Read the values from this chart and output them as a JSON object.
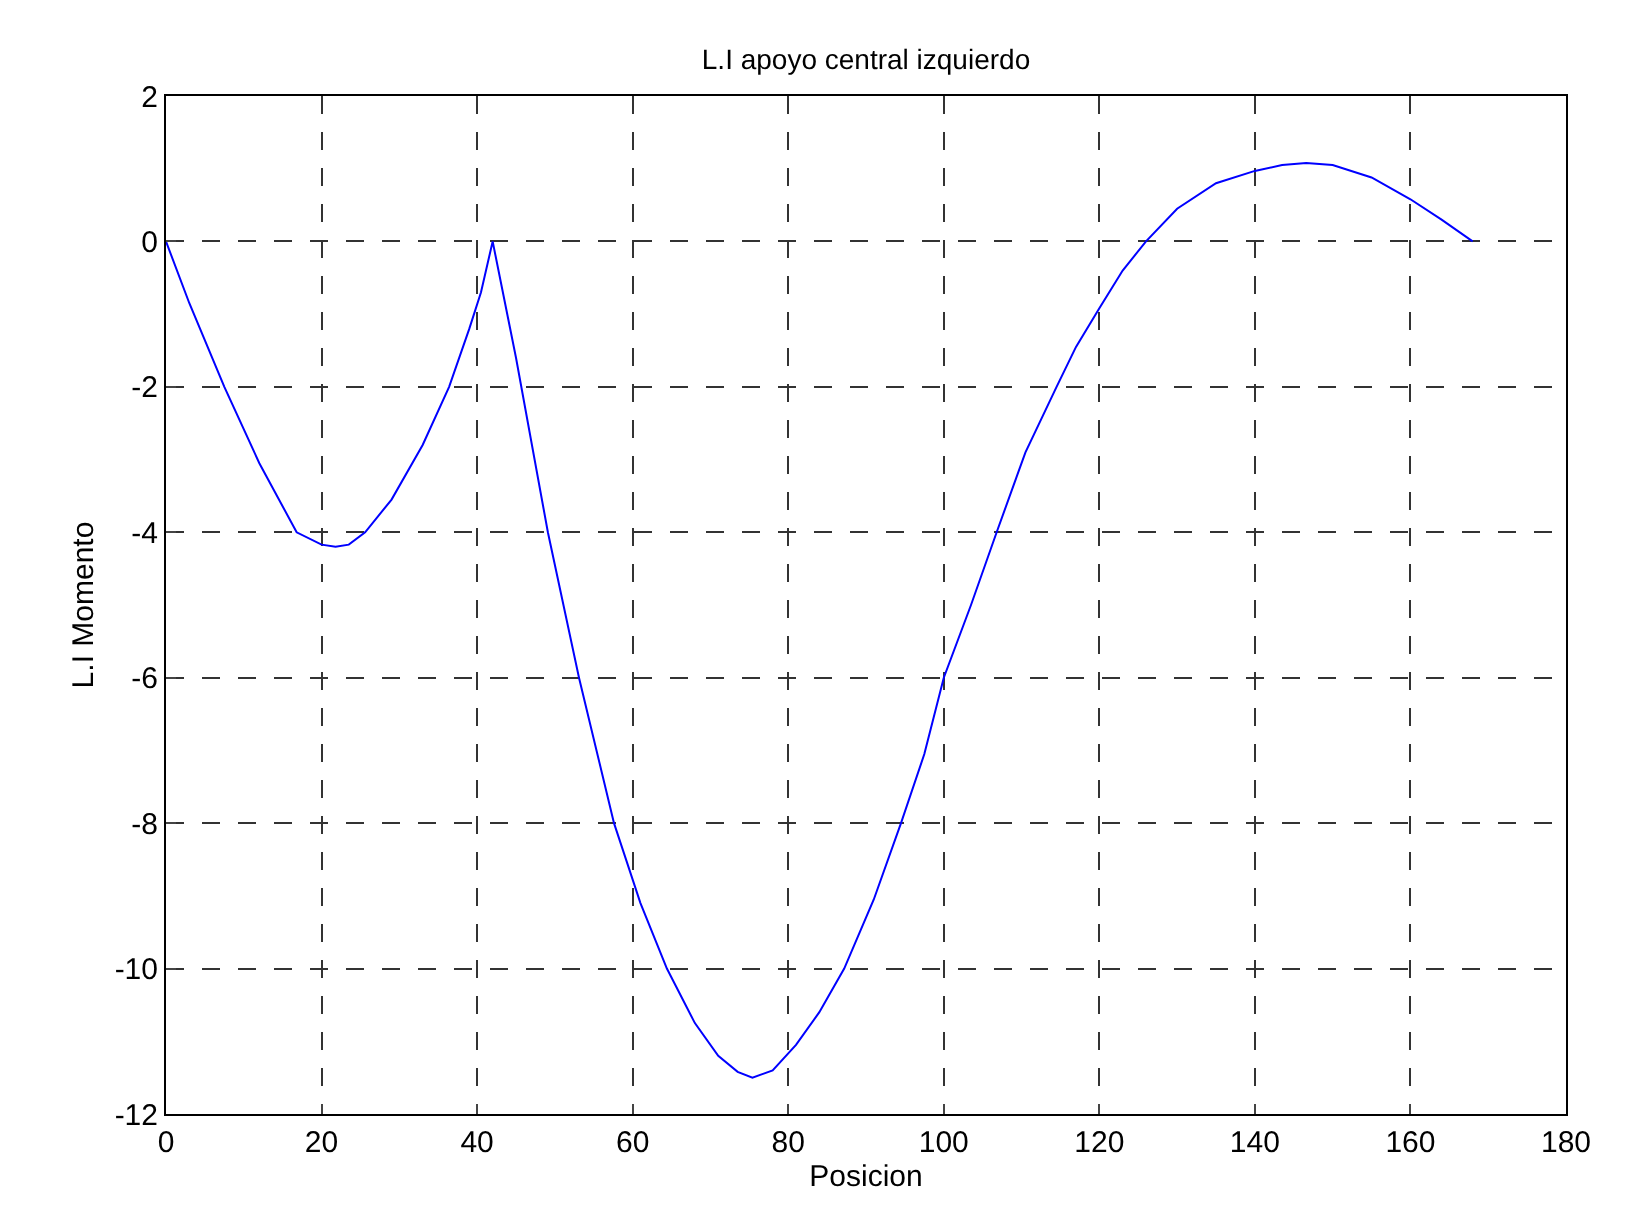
{
  "chart_data": {
    "type": "line",
    "title": "L.I apoyo central izquierdo",
    "xlabel": "Posicion",
    "ylabel": "L.I Momento",
    "series": [
      {
        "color": "#0000ff",
        "x": [
          0,
          3,
          7.5,
          12,
          16.8,
          20,
          21.8,
          23.5,
          25.6,
          29,
          33,
          36.4,
          39,
          40.5,
          42,
          45,
          49.1,
          53.1,
          57.6,
          61,
          64.4,
          68,
          71,
          73.5,
          75.4,
          78,
          81,
          84,
          87.2,
          91,
          94.5,
          97.5,
          100,
          103.5,
          106.8,
          110.5,
          114.5,
          117,
          120,
          123,
          126,
          130,
          135,
          140,
          143.5,
          146.6,
          150,
          155,
          160,
          164,
          168
        ],
        "values": [
          0,
          -0.85,
          -2,
          -3.05,
          -4,
          -4.17,
          -4.2,
          -4.17,
          -4,
          -3.55,
          -2.8,
          -2,
          -1.2,
          -0.7,
          0,
          -1.6,
          -4,
          -6,
          -8,
          -9.1,
          -10,
          -10.75,
          -11.2,
          -11.42,
          -11.5,
          -11.4,
          -11.05,
          -10.6,
          -10,
          -9.05,
          -8,
          -7.05,
          -6,
          -5,
          -4,
          -2.9,
          -2,
          -1.45,
          -0.92,
          -0.4,
          0,
          0.45,
          0.8,
          0.97,
          1.05,
          1.08,
          1.05,
          0.88,
          0.58,
          0.3,
          0
        ]
      }
    ],
    "xlim": [
      0,
      180
    ],
    "xticks": [
      0,
      20,
      40,
      60,
      80,
      100,
      120,
      140,
      160,
      180
    ],
    "ylim": [
      -12,
      2
    ],
    "yticks": [
      -12,
      -10,
      -8,
      -6,
      -4,
      -2,
      0,
      2
    ],
    "grid": true,
    "marker": "none",
    "line_style": "solid"
  }
}
